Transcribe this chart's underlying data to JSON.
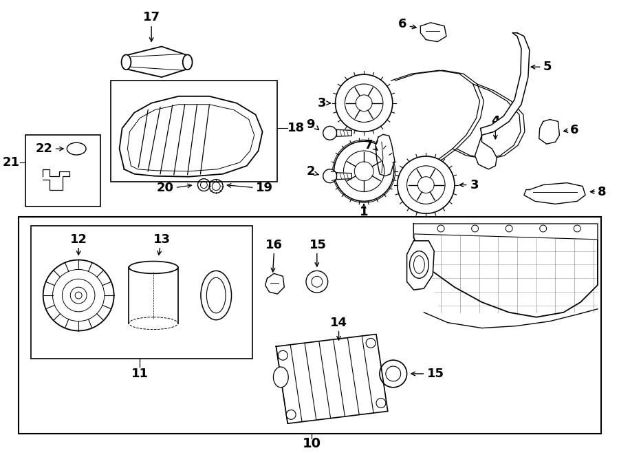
{
  "bg_color": "#ffffff",
  "line_color": "#000000",
  "fig_width": 9.0,
  "fig_height": 6.61,
  "dpi": 100,
  "fs_label": 13,
  "lw_main": 1.3,
  "lw_thin": 0.8
}
